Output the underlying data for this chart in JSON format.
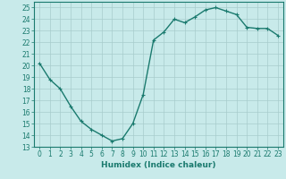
{
  "xlabel": "Humidex (Indice chaleur)",
  "ylabel": "",
  "x": [
    0,
    1,
    2,
    3,
    4,
    5,
    6,
    7,
    8,
    9,
    10,
    11,
    12,
    13,
    14,
    15,
    16,
    17,
    18,
    19,
    20,
    21,
    22,
    23
  ],
  "y": [
    20.2,
    18.8,
    18.0,
    16.5,
    15.2,
    14.5,
    14.0,
    13.5,
    13.7,
    15.0,
    17.5,
    22.2,
    22.9,
    24.0,
    23.7,
    24.2,
    24.8,
    25.0,
    24.7,
    24.4,
    23.3,
    23.2,
    23.2,
    22.6
  ],
  "line_color": "#1a7a6e",
  "marker": "+",
  "marker_size": 3,
  "line_width": 1.0,
  "bg_color": "#c8eaea",
  "grid_color": "#a8cccc",
  "tick_color": "#1a7a6e",
  "label_color": "#1a7a6e",
  "ylim": [
    13,
    25.5
  ],
  "xlim": [
    -0.5,
    23.5
  ],
  "yticks": [
    13,
    14,
    15,
    16,
    17,
    18,
    19,
    20,
    21,
    22,
    23,
    24,
    25
  ],
  "xticks": [
    0,
    1,
    2,
    3,
    4,
    5,
    6,
    7,
    8,
    9,
    10,
    11,
    12,
    13,
    14,
    15,
    16,
    17,
    18,
    19,
    20,
    21,
    22,
    23
  ],
  "axis_fontsize": 6.5,
  "tick_fontsize": 5.5
}
